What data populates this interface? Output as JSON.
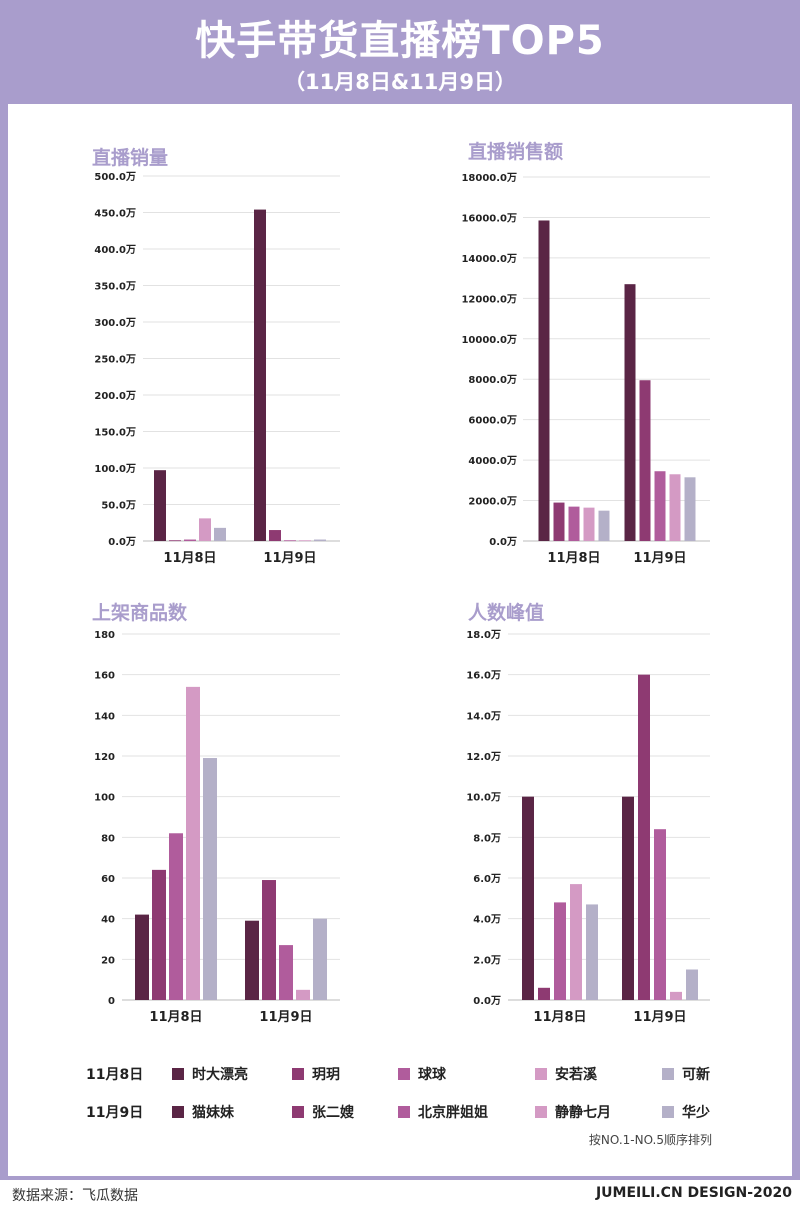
{
  "header": {
    "title": "快手带货直播榜TOP5",
    "subtitle": "（11月8日&11月9日）"
  },
  "colors": {
    "header_bg": "#a99dcc",
    "series": [
      "#5a2545",
      "#8e3a72",
      "#b05c9c",
      "#d49ac4",
      "#b4b0c8"
    ]
  },
  "chart_data": [
    {
      "type": "bar",
      "title": "直播销量",
      "categories": [
        "11月8日",
        "11月9日"
      ],
      "ylim": [
        0,
        500
      ],
      "yticks": [
        0,
        50,
        100,
        150,
        200,
        250,
        300,
        350,
        400,
        450,
        500
      ],
      "tick_suffix": ".0万",
      "grid": true,
      "series": [
        {
          "values": [
            97,
            454
          ]
        },
        {
          "values": [
            1,
            15
          ]
        },
        {
          "values": [
            2,
            1
          ]
        },
        {
          "values": [
            31,
            1
          ]
        },
        {
          "values": [
            18,
            2
          ]
        }
      ]
    },
    {
      "type": "bar",
      "title": "直播销售额",
      "categories": [
        "11月8日",
        "11月9日"
      ],
      "ylim": [
        0,
        18000
      ],
      "yticks": [
        0,
        2000,
        4000,
        6000,
        8000,
        10000,
        12000,
        14000,
        16000,
        18000
      ],
      "tick_suffix": ".0万",
      "grid": true,
      "series": [
        {
          "values": [
            15850,
            12700
          ]
        },
        {
          "values": [
            1900,
            7950
          ]
        },
        {
          "values": [
            1700,
            3450
          ]
        },
        {
          "values": [
            1650,
            3300
          ]
        },
        {
          "values": [
            1500,
            3150
          ]
        }
      ]
    },
    {
      "type": "bar",
      "title": "上架商品数",
      "categories": [
        "11月8日",
        "11月9日"
      ],
      "ylim": [
        0,
        180
      ],
      "yticks": [
        0,
        20,
        40,
        60,
        80,
        100,
        120,
        140,
        160,
        180
      ],
      "tick_suffix": "",
      "grid": true,
      "series": [
        {
          "values": [
            42,
            39
          ]
        },
        {
          "values": [
            64,
            59
          ]
        },
        {
          "values": [
            82,
            27
          ]
        },
        {
          "values": [
            154,
            5
          ]
        },
        {
          "values": [
            119,
            40
          ]
        }
      ]
    },
    {
      "type": "bar",
      "title": "人数峰值",
      "categories": [
        "11月8日",
        "11月9日"
      ],
      "ylim": [
        0,
        18
      ],
      "yticks": [
        0,
        2,
        4,
        6,
        8,
        10,
        12,
        14,
        16,
        18
      ],
      "tick_suffix": ".0万",
      "grid": true,
      "series": [
        {
          "values": [
            10.0,
            10.0
          ]
        },
        {
          "values": [
            0.6,
            16.0
          ]
        },
        {
          "values": [
            4.8,
            8.4
          ]
        },
        {
          "values": [
            5.7,
            0.4
          ]
        },
        {
          "values": [
            4.7,
            1.5
          ]
        }
      ]
    }
  ],
  "legend": {
    "rows": [
      {
        "date": "11月8日",
        "names": [
          "时大漂亮",
          "玥玥",
          "球球",
          "安若溪",
          "可新"
        ]
      },
      {
        "date": "11月9日",
        "names": [
          "猫妹妹",
          "张二嫂",
          "北京胖姐姐",
          "静静七月",
          "华少"
        ]
      }
    ],
    "note": "按NO.1-NO.5顺序排列"
  },
  "footer": {
    "source": "数据来源：飞瓜数据",
    "credit": "JUMEILI.CN DESIGN-2020"
  }
}
